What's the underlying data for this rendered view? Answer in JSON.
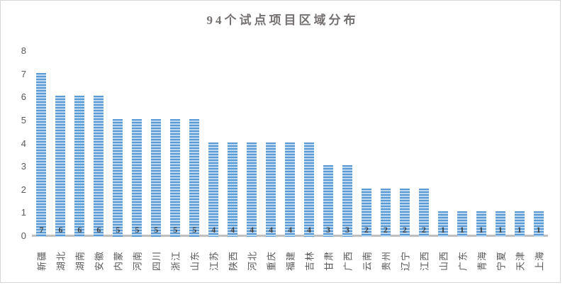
{
  "chart_data": {
    "type": "bar",
    "title": "94个试点项目区域分布",
    "categories": [
      "新疆",
      "湖北",
      "湖南",
      "安徽",
      "内蒙",
      "河南",
      "四川",
      "浙江",
      "山东",
      "江苏",
      "陕西",
      "河北",
      "重庆",
      "福建",
      "吉林",
      "甘肃",
      "广西",
      "云南",
      "贵州",
      "辽宁",
      "江西",
      "山西",
      "广东",
      "青海",
      "宁夏",
      "天津",
      "上海"
    ],
    "values": [
      7,
      6,
      6,
      6,
      5,
      5,
      5,
      5,
      5,
      4,
      4,
      4,
      4,
      4,
      4,
      3,
      3,
      2,
      2,
      2,
      2,
      1,
      1,
      1,
      1,
      1,
      1
    ],
    "data_labels": [
      7,
      6,
      6,
      6,
      5,
      5,
      5,
      5,
      5,
      4,
      4,
      4,
      4,
      4,
      4,
      3,
      3,
      2,
      2,
      2,
      2,
      1,
      1,
      1,
      1,
      1,
      1
    ],
    "data_label_position": "inside-base",
    "xlabel": "",
    "ylabel": "",
    "ylim": [
      0,
      8
    ],
    "yticks": [
      0,
      1,
      2,
      3,
      4,
      5,
      6,
      7,
      8
    ],
    "grid": false,
    "legend": "none",
    "colors": {
      "bar_stripe_dark": "#5b9bd5",
      "bar_stripe_light": "#bdd7ee",
      "axis_line": "#bfbfbf",
      "tick_label": "#595959",
      "category_label": "#595959",
      "data_label": "#404040",
      "title": "#767171"
    }
  }
}
